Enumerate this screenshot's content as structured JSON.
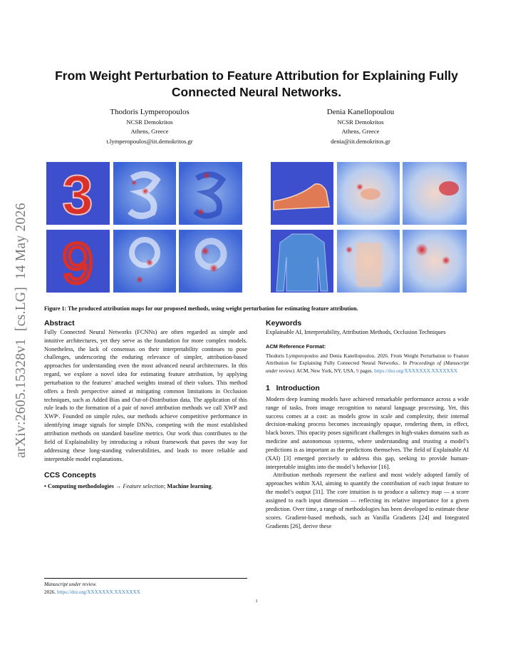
{
  "sidebar": "arXiv:2605.15328v1  [cs.LG]  14 May 2026",
  "title": "From Weight Perturbation to Feature Attribution for Explaining Fully Connected Neural Networks.",
  "authors": [
    {
      "name": "Thodoris Lymperopoulos",
      "affiliation": "NCSR Demokritos",
      "location": "Athens, Greece",
      "email": "t.lymperopoulos@iit.demokritos.gr"
    },
    {
      "name": "Denia Kanellopoulou",
      "affiliation": "NCSR Demokritos",
      "location": "Athens, Greece",
      "email": "denia@iit.demokritos.gr"
    }
  ],
  "figure": {
    "caption": "Figure 1: The produced attribution maps for our proposed methods, using weight perturbation for estimating feature attribution."
  },
  "abstract": {
    "heading": "Abstract",
    "text": "Fully Connected Neural Networks (FCNNs) are often regarded as simple and intuitive architectures, yet they serve as the foundation for more complex models. Nonetheless, the lack of consensus on their interpretability continues to pose challenges, underscoring the enduring relevance of simpler, attribution-based approaches for understanding even the most advanced neural architectures. In this regard, we explore a novel idea for estimating feature attribution, by applying perturbation to the features’ attached weights instead of their values. This method offers a fresh perspective aimed at mitigating common limitations in Occlusion techniques, such as Added Bias and Out-of-Distribution data. The application of this rule leads to the formation of a pair of novel attribution methods we call XWP and XWPᶜ. Founded on simple rules, our methods achieve competitive performance in identifying image signals for simple DNNs, competing with the most established attribution methods on standard baseline metrics. Our work thus contributes to the field of Explainability by introducing a robust framework that paves the way for addressing these long-standing vulnerabilities, and leads to more reliable and interpretable model explanations."
  },
  "ccs": {
    "heading": "CCS Concepts",
    "parts": [
      "• Computing methodologies → ",
      "Feature selection",
      "; ",
      "Machine learning",
      "."
    ]
  },
  "footnote": {
    "line1": "Manuscript under review.",
    "year": "2026.",
    "doi": "https://doi.org/XXXXXXX.XXXXXXX"
  },
  "page_number": "1",
  "keywords": {
    "heading": "Keywords",
    "text": "Explainable AI, Interpretability, Attribution Methods, Occlusion Techniques"
  },
  "acm_reference": {
    "heading": "ACM Reference Format:",
    "parts": [
      "Thodoris Lymperopoulos and Denia Kanellopoulou. 2026. From Weight Perturbation to Feature Attribution for Explaining Fully Connected Neural Networks.. In ",
      "Proceedings of  (Manuscript under review)",
      ". ACM, New York, NY, USA, ",
      "9",
      " pages. ",
      "https://doi.org/XXXXXXX.XXXXXXX"
    ]
  },
  "introduction": {
    "number": "1",
    "heading": "Introduction",
    "paragraphs": [
      "Modern deep learning models have achieved remarkable performance across a wide range of tasks, from image recognition to natural language processing. Yet, this success comes at a cost: as models grow in scale and complexity, their internal decision-making process becomes increasingly opaque, rendering them, in effect, black boxes. This opacity poses significant challenges in high-stakes domains such as medicine and autonomous systems, where understanding and trusting a model’s predictions is as important as the predictions themselves. The field of Explainable AI (XAI) [3] emerged precisely to address this gap, seeking to provide human-interpretable insights into the model’s behavior [16].",
      "Attribution methods represent the earliest and most widely adopted family of approaches within XAI, aiming to quantify the contribution of each input feature to the model’s output [31]. The core intuition is to produce a saliency map — a score assigned to each input dimension — reflecting its relative importance for a given prediction. Over time, a range of methodologies has been developed to estimate these scores. Gradient-based methods, such as Vanilla Gradients [24] and Integrated Gradients [26], derive these"
    ]
  }
}
